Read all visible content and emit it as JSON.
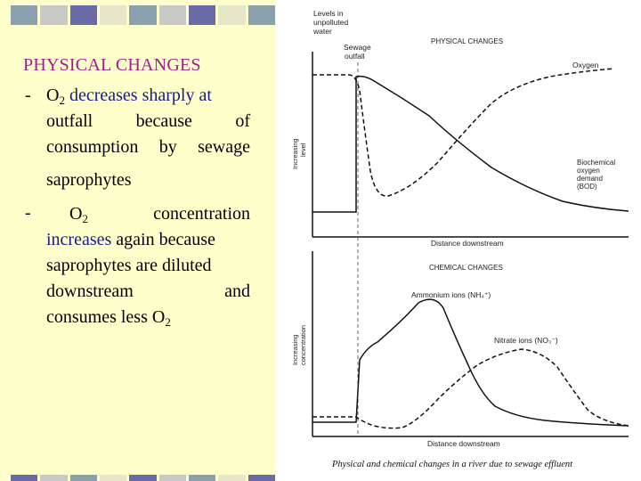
{
  "slide": {
    "title": "PHYSICAL CHANGES",
    "bullet_marker": "-",
    "bullet1": {
      "o2_pre": "O",
      "o2_sub": "2",
      "highlight": "decreases sharply at",
      "line2": "outfall because of",
      "line3": "consumption by sewage",
      "line4": "saprophytes"
    },
    "bullet2": {
      "o2_pre": "O",
      "o2_sub": "2",
      "concentration": "concentration",
      "highlight": "increases",
      "line2_rest": "again because",
      "line3": "saprophytes are diluted",
      "line4": "downstream and",
      "line5_pre": "consumes less O",
      "line5_sub": "2"
    }
  },
  "decor": {
    "top_colors": [
      "#8aa0ae",
      "#c8c8c8",
      "#6a6aa6",
      "#e6e6c8",
      "#8aa0ae",
      "#c8c8c8",
      "#6a6aa6",
      "#e6e6c8",
      "#8aa0ae"
    ],
    "bottom_colors": [
      "#6a6aa6",
      "#c8c8c8",
      "#8aa0ae",
      "#e6e6c8",
      "#6a6aa6",
      "#c8c8c8",
      "#8aa0ae",
      "#e6e6c8",
      "#6a6aa6"
    ]
  },
  "figure": {
    "label_levels": [
      "Levels in",
      "unpolluted",
      "water"
    ],
    "label_outfall": [
      "Sewage",
      "outfall"
    ],
    "physical_title": "PHYSICAL CHANGES",
    "oxygen_label": "Oxygen",
    "bod_label": [
      "Biochemical",
      "oxygen",
      "demand",
      "(BOD)"
    ],
    "ylabel_physical": [
      "Increasing",
      "level"
    ],
    "xlabel_physical": "Distance downstream",
    "chemical_title": "CHEMICAL CHANGES",
    "ammonium_label": "Ammonium ions (NH₄⁺)",
    "nitrate_label": "Nitrate ions (NO₃⁻)",
    "ylabel_chemical": [
      "Increasing",
      "concentration"
    ],
    "xlabel_chemical": "Distance downstream",
    "caption": "Physical and chemical changes in a river due to sewage effluent"
  }
}
